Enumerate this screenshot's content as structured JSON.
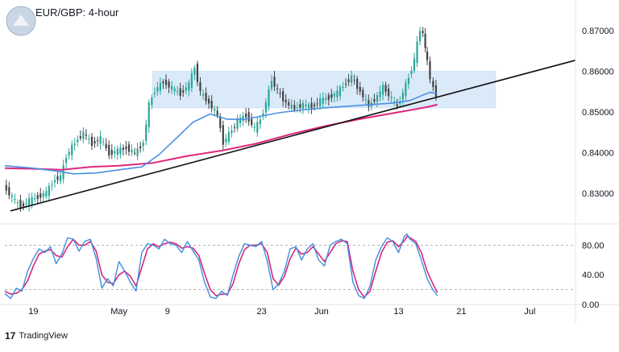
{
  "header": {
    "title": "EUR/GBP: 4-hour"
  },
  "footer": {
    "brand": "TradingView",
    "brand_mark": "17"
  },
  "colors": {
    "candle_up": "#26a69a",
    "candle_down": "#424242",
    "ma_fast": "#4a90e2",
    "ma_slow": "#e0267d",
    "trendline": "#111111",
    "range_box": "#cfe3f7",
    "stoch_k": "#3d8fe0",
    "stoch_d": "#d6287c"
  },
  "chart_data": [
    {
      "type": "candlestick",
      "title": "EUR/GBP: 4-hour",
      "y_ticks": [
        "0.87000",
        "0.86000",
        "0.85000",
        "0.84000",
        "0.83000"
      ],
      "y_tick_values": [
        0.87,
        0.86,
        0.85,
        0.84,
        0.83
      ],
      "ylim": [
        0.8225,
        0.8775
      ],
      "x_ticks": [
        "19",
        "May",
        "9",
        "23",
        "Jun",
        "13",
        "21",
        "Jul"
      ],
      "x_tick_positions": [
        0.05,
        0.2,
        0.285,
        0.45,
        0.555,
        0.69,
        0.8,
        0.92
      ],
      "range_box": {
        "low": 0.851,
        "high": 0.86,
        "x_start": 0.259,
        "x_end": 0.86
      },
      "trendline": {
        "start": [
          0.01,
          0.8257
        ],
        "end": [
          1.0,
          0.8627
        ]
      },
      "close_series": [
        [
          0.0,
          0.8318
        ],
        [
          0.015,
          0.829
        ],
        [
          0.03,
          0.8268
        ],
        [
          0.045,
          0.8282
        ],
        [
          0.06,
          0.8291
        ],
        [
          0.075,
          0.8302
        ],
        [
          0.09,
          0.8335
        ],
        [
          0.1,
          0.834
        ],
        [
          0.11,
          0.8392
        ],
        [
          0.125,
          0.8425
        ],
        [
          0.14,
          0.8448
        ],
        [
          0.155,
          0.8422
        ],
        [
          0.17,
          0.8435
        ],
        [
          0.185,
          0.8398
        ],
        [
          0.2,
          0.8405
        ],
        [
          0.215,
          0.8412
        ],
        [
          0.23,
          0.8398
        ],
        [
          0.245,
          0.8425
        ],
        [
          0.255,
          0.8518
        ],
        [
          0.265,
          0.8552
        ],
        [
          0.28,
          0.8575
        ],
        [
          0.295,
          0.8558
        ],
        [
          0.31,
          0.8545
        ],
        [
          0.325,
          0.8568
        ],
        [
          0.335,
          0.861
        ],
        [
          0.345,
          0.8548
        ],
        [
          0.36,
          0.8522
        ],
        [
          0.375,
          0.8492
        ],
        [
          0.385,
          0.8425
        ],
        [
          0.395,
          0.8445
        ],
        [
          0.41,
          0.8478
        ],
        [
          0.425,
          0.8492
        ],
        [
          0.44,
          0.8458
        ],
        [
          0.45,
          0.8482
        ],
        [
          0.46,
          0.8522
        ],
        [
          0.47,
          0.858
        ],
        [
          0.48,
          0.8552
        ],
        [
          0.495,
          0.8522
        ],
        [
          0.51,
          0.8508
        ],
        [
          0.525,
          0.8518
        ],
        [
          0.54,
          0.8512
        ],
        [
          0.555,
          0.8528
        ],
        [
          0.57,
          0.8535
        ],
        [
          0.585,
          0.8548
        ],
        [
          0.6,
          0.8572
        ],
        [
          0.61,
          0.8585
        ],
        [
          0.625,
          0.855
        ],
        [
          0.64,
          0.8515
        ],
        [
          0.655,
          0.8538
        ],
        [
          0.665,
          0.8562
        ],
        [
          0.68,
          0.8532
        ],
        [
          0.69,
          0.8512
        ],
        [
          0.7,
          0.8548
        ],
        [
          0.71,
          0.8585
        ],
        [
          0.72,
          0.8628
        ],
        [
          0.725,
          0.8668
        ],
        [
          0.73,
          0.8702
        ],
        [
          0.735,
          0.8692
        ],
        [
          0.742,
          0.8622
        ],
        [
          0.748,
          0.8582
        ],
        [
          0.753,
          0.8558
        ],
        [
          0.758,
          0.8542
        ]
      ],
      "ma_fast": [
        [
          0.0,
          0.8368
        ],
        [
          0.05,
          0.8362
        ],
        [
          0.09,
          0.8355
        ],
        [
          0.12,
          0.8348
        ],
        [
          0.16,
          0.835
        ],
        [
          0.2,
          0.8358
        ],
        [
          0.24,
          0.8365
        ],
        [
          0.27,
          0.8395
        ],
        [
          0.3,
          0.8435
        ],
        [
          0.33,
          0.8475
        ],
        [
          0.36,
          0.8495
        ],
        [
          0.39,
          0.8482
        ],
        [
          0.42,
          0.8482
        ],
        [
          0.45,
          0.849
        ],
        [
          0.48,
          0.8498
        ],
        [
          0.52,
          0.8505
        ],
        [
          0.56,
          0.851
        ],
        [
          0.6,
          0.8514
        ],
        [
          0.64,
          0.8518
        ],
        [
          0.68,
          0.8522
        ],
        [
          0.71,
          0.8528
        ],
        [
          0.73,
          0.854
        ],
        [
          0.745,
          0.8548
        ],
        [
          0.758,
          0.8545
        ]
      ],
      "ma_slow": [
        [
          0.0,
          0.8362
        ],
        [
          0.06,
          0.836
        ],
        [
          0.1,
          0.8358
        ],
        [
          0.15,
          0.8365
        ],
        [
          0.2,
          0.8368
        ],
        [
          0.26,
          0.8375
        ],
        [
          0.32,
          0.8392
        ],
        [
          0.38,
          0.8405
        ],
        [
          0.44,
          0.8422
        ],
        [
          0.5,
          0.8445
        ],
        [
          0.56,
          0.8465
        ],
        [
          0.62,
          0.8482
        ],
        [
          0.66,
          0.8492
        ],
        [
          0.7,
          0.8502
        ],
        [
          0.74,
          0.8512
        ],
        [
          0.758,
          0.8518
        ]
      ],
      "series": [
        {
          "name": "EUR/GBP",
          "values": "close_series"
        }
      ]
    },
    {
      "type": "line",
      "y_ticks": [
        "80.00",
        "40.00",
        "0.00"
      ],
      "y_tick_values": [
        80,
        40,
        0
      ],
      "ylim": [
        0,
        100
      ],
      "levels": [
        80,
        20
      ],
      "stoch_k": [
        [
          0.0,
          15
        ],
        [
          0.01,
          8
        ],
        [
          0.02,
          22
        ],
        [
          0.03,
          18
        ],
        [
          0.04,
          45
        ],
        [
          0.05,
          62
        ],
        [
          0.06,
          75
        ],
        [
          0.07,
          70
        ],
        [
          0.08,
          78
        ],
        [
          0.09,
          55
        ],
        [
          0.1,
          68
        ],
        [
          0.11,
          90
        ],
        [
          0.12,
          88
        ],
        [
          0.13,
          72
        ],
        [
          0.14,
          85
        ],
        [
          0.15,
          88
        ],
        [
          0.16,
          62
        ],
        [
          0.17,
          22
        ],
        [
          0.18,
          35
        ],
        [
          0.19,
          25
        ],
        [
          0.2,
          58
        ],
        [
          0.21,
          45
        ],
        [
          0.22,
          30
        ],
        [
          0.23,
          18
        ],
        [
          0.24,
          70
        ],
        [
          0.25,
          82
        ],
        [
          0.26,
          80
        ],
        [
          0.27,
          75
        ],
        [
          0.28,
          88
        ],
        [
          0.29,
          82
        ],
        [
          0.3,
          80
        ],
        [
          0.31,
          70
        ],
        [
          0.32,
          85
        ],
        [
          0.33,
          72
        ],
        [
          0.34,
          60
        ],
        [
          0.35,
          30
        ],
        [
          0.36,
          10
        ],
        [
          0.37,
          8
        ],
        [
          0.38,
          18
        ],
        [
          0.39,
          12
        ],
        [
          0.4,
          40
        ],
        [
          0.41,
          65
        ],
        [
          0.42,
          82
        ],
        [
          0.43,
          80
        ],
        [
          0.44,
          78
        ],
        [
          0.45,
          85
        ],
        [
          0.46,
          58
        ],
        [
          0.47,
          20
        ],
        [
          0.48,
          28
        ],
        [
          0.49,
          45
        ],
        [
          0.5,
          75
        ],
        [
          0.51,
          78
        ],
        [
          0.52,
          60
        ],
        [
          0.53,
          75
        ],
        [
          0.54,
          82
        ],
        [
          0.55,
          60
        ],
        [
          0.56,
          52
        ],
        [
          0.57,
          80
        ],
        [
          0.58,
          85
        ],
        [
          0.59,
          88
        ],
        [
          0.6,
          82
        ],
        [
          0.61,
          30
        ],
        [
          0.62,
          12
        ],
        [
          0.63,
          8
        ],
        [
          0.64,
          25
        ],
        [
          0.65,
          60
        ],
        [
          0.66,
          78
        ],
        [
          0.67,
          90
        ],
        [
          0.68,
          85
        ],
        [
          0.69,
          70
        ],
        [
          0.7,
          92
        ],
        [
          0.705,
          95
        ],
        [
          0.71,
          88
        ],
        [
          0.72,
          82
        ],
        [
          0.73,
          60
        ],
        [
          0.74,
          35
        ],
        [
          0.75,
          20
        ],
        [
          0.758,
          12
        ]
      ],
      "stoch_d": [
        [
          0.0,
          18
        ],
        [
          0.01,
          14
        ],
        [
          0.02,
          15
        ],
        [
          0.03,
          20
        ],
        [
          0.04,
          32
        ],
        [
          0.05,
          52
        ],
        [
          0.06,
          68
        ],
        [
          0.07,
          72
        ],
        [
          0.08,
          74
        ],
        [
          0.09,
          66
        ],
        [
          0.1,
          64
        ],
        [
          0.11,
          78
        ],
        [
          0.12,
          88
        ],
        [
          0.13,
          80
        ],
        [
          0.14,
          80
        ],
        [
          0.15,
          85
        ],
        [
          0.16,
          72
        ],
        [
          0.17,
          40
        ],
        [
          0.18,
          30
        ],
        [
          0.19,
          28
        ],
        [
          0.2,
          40
        ],
        [
          0.21,
          45
        ],
        [
          0.22,
          38
        ],
        [
          0.23,
          25
        ],
        [
          0.24,
          50
        ],
        [
          0.25,
          75
        ],
        [
          0.26,
          82
        ],
        [
          0.27,
          78
        ],
        [
          0.28,
          82
        ],
        [
          0.29,
          84
        ],
        [
          0.3,
          82
        ],
        [
          0.31,
          76
        ],
        [
          0.32,
          78
        ],
        [
          0.33,
          76
        ],
        [
          0.34,
          66
        ],
        [
          0.35,
          42
        ],
        [
          0.36,
          20
        ],
        [
          0.37,
          12
        ],
        [
          0.38,
          14
        ],
        [
          0.39,
          14
        ],
        [
          0.4,
          28
        ],
        [
          0.41,
          55
        ],
        [
          0.42,
          74
        ],
        [
          0.43,
          80
        ],
        [
          0.44,
          80
        ],
        [
          0.45,
          82
        ],
        [
          0.46,
          70
        ],
        [
          0.47,
          35
        ],
        [
          0.48,
          26
        ],
        [
          0.49,
          38
        ],
        [
          0.5,
          62
        ],
        [
          0.51,
          76
        ],
        [
          0.52,
          68
        ],
        [
          0.53,
          70
        ],
        [
          0.54,
          78
        ],
        [
          0.55,
          68
        ],
        [
          0.56,
          58
        ],
        [
          0.57,
          70
        ],
        [
          0.58,
          82
        ],
        [
          0.59,
          86
        ],
        [
          0.6,
          85
        ],
        [
          0.61,
          45
        ],
        [
          0.62,
          20
        ],
        [
          0.63,
          10
        ],
        [
          0.64,
          18
        ],
        [
          0.65,
          45
        ],
        [
          0.66,
          70
        ],
        [
          0.67,
          84
        ],
        [
          0.68,
          86
        ],
        [
          0.69,
          78
        ],
        [
          0.7,
          86
        ],
        [
          0.705,
          92
        ],
        [
          0.71,
          90
        ],
        [
          0.72,
          85
        ],
        [
          0.73,
          70
        ],
        [
          0.74,
          45
        ],
        [
          0.75,
          28
        ],
        [
          0.758,
          16
        ]
      ],
      "series": [
        {
          "name": "",
          "values": "stoch_k"
        },
        {
          "name": "",
          "values": "stoch_d"
        }
      ]
    }
  ]
}
